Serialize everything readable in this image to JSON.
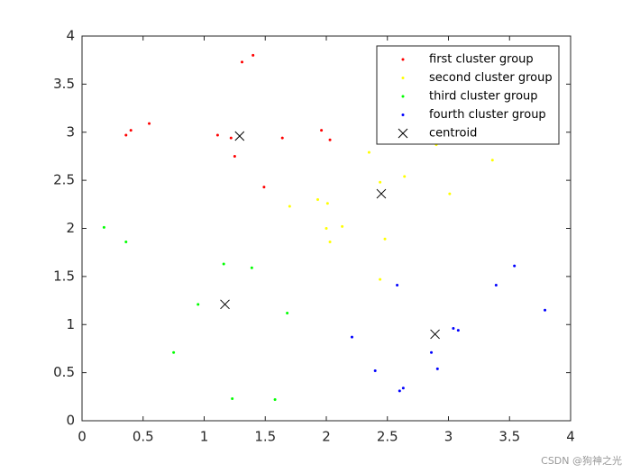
{
  "chart_data": {
    "type": "scatter",
    "xlim": [
      0,
      4
    ],
    "ylim": [
      0,
      4
    ],
    "xticks": [
      0,
      0.5,
      1,
      1.5,
      2,
      2.5,
      3,
      3.5,
      4
    ],
    "yticks": [
      0,
      0.5,
      1,
      1.5,
      2,
      2.5,
      3,
      3.5,
      4
    ],
    "legend": "upper right",
    "series": [
      {
        "name": "first cluster group",
        "color": "#ff0000",
        "marker": "dot",
        "x": [
          1.31,
          1.4,
          0.36,
          0.4,
          0.55,
          1.11,
          1.22,
          1.25,
          1.49,
          1.64,
          1.96,
          2.03
        ],
        "values": [
          3.73,
          3.8,
          2.97,
          3.02,
          3.09,
          2.97,
          2.94,
          2.75,
          2.43,
          2.94,
          3.02,
          2.92
        ]
      },
      {
        "name": "second cluster group",
        "color": "#ffff00",
        "marker": "dot",
        "x": [
          2.35,
          2.44,
          2.64,
          2.9,
          3.36,
          3.01,
          1.7,
          1.93,
          2.01,
          2.13,
          2.0,
          2.03,
          2.48,
          2.44
        ],
        "values": [
          2.79,
          2.48,
          2.54,
          2.87,
          2.71,
          2.36,
          2.23,
          2.3,
          2.26,
          2.02,
          2.0,
          1.86,
          1.89,
          1.47
        ]
      },
      {
        "name": "third cluster group",
        "color": "#00ff00",
        "marker": "dot",
        "x": [
          0.18,
          0.36,
          1.16,
          1.39,
          0.95,
          1.68,
          0.75,
          1.23,
          1.58
        ],
        "values": [
          2.01,
          1.86,
          1.63,
          1.59,
          1.21,
          1.12,
          0.71,
          0.23,
          0.22
        ]
      },
      {
        "name": "fourth cluster group",
        "color": "#0000ff",
        "marker": "dot",
        "x": [
          3.54,
          3.39,
          2.58,
          3.79,
          3.04,
          3.08,
          2.21,
          2.86,
          2.4,
          2.91,
          2.63,
          2.6
        ],
        "values": [
          1.61,
          1.41,
          1.41,
          1.15,
          0.96,
          0.94,
          0.87,
          0.71,
          0.52,
          0.54,
          0.34,
          0.31
        ]
      },
      {
        "name": "centroid",
        "color": "#000000",
        "marker": "x",
        "x": [
          1.29,
          2.45,
          1.17,
          2.89
        ],
        "values": [
          2.96,
          2.36,
          1.21,
          0.9
        ]
      }
    ]
  },
  "watermark": "CSDN @狗神之光"
}
